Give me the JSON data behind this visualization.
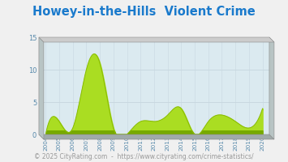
{
  "title": "Howey-in-the-Hills  Violent Crime",
  "years": [
    2004,
    2005,
    2006,
    2007,
    2008,
    2009,
    2010,
    2011,
    2012,
    2013,
    2014,
    2015,
    2016,
    2017,
    2018,
    2019,
    2020
  ],
  "values": [
    0,
    2,
    1,
    10,
    11,
    1,
    0,
    2,
    2,
    3,
    4,
    0,
    2,
    3,
    2,
    1,
    4
  ],
  "ylim": [
    0,
    15
  ],
  "yticks": [
    0,
    5,
    10,
    15
  ],
  "fill_color_top": "#aadd22",
  "fill_color_bot": "#77aa00",
  "line_color": "#88bb00",
  "bg_plot": "#dbeaf0",
  "grid_color": "#c8d8e0",
  "side_color": "#b8c4c4",
  "side_dark": "#a0aaaa",
  "fig_bg": "#f0f0f0",
  "title_color": "#1a7acc",
  "tick_color": "#5588aa",
  "footer_color": "#999999",
  "title_fontsize": 10.5,
  "tick_fontsize": 5.2,
  "ytick_fontsize": 6.0,
  "footer_fontsize": 5.5,
  "footer_text": "© 2025 CityRating.com  -  https://www.cityrating.com/crime-statistics/"
}
